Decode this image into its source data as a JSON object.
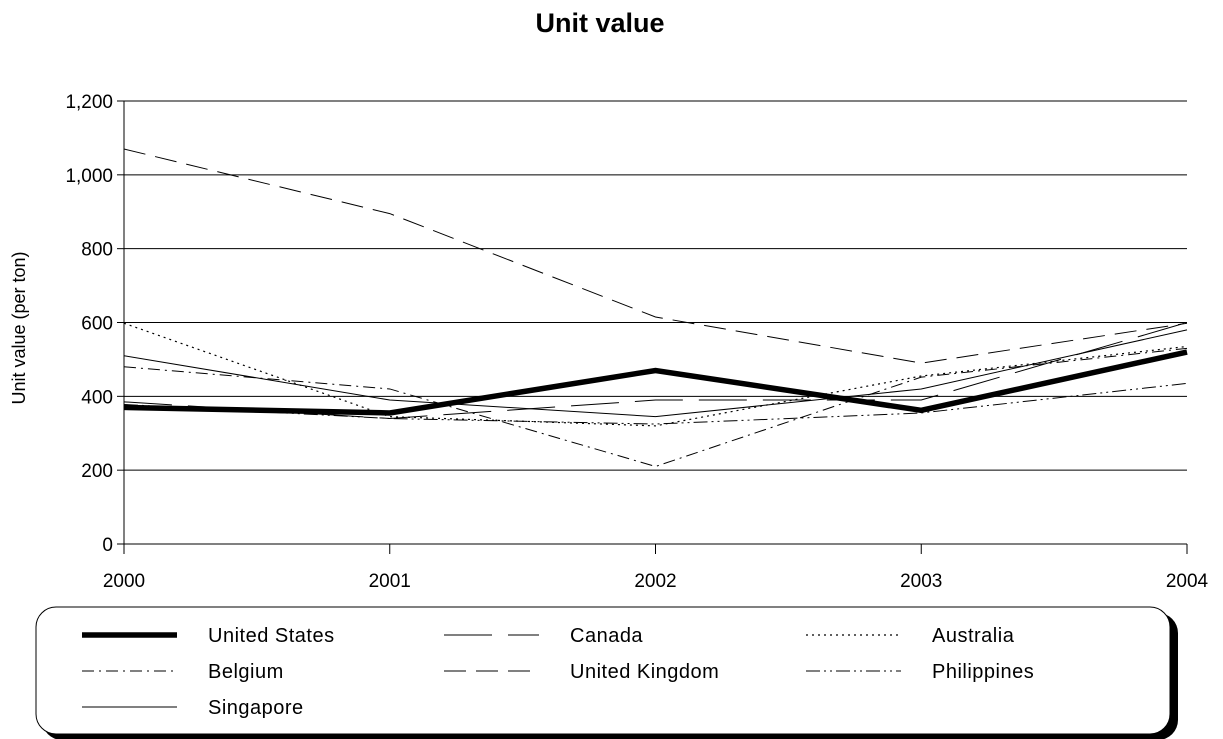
{
  "chart_data": {
    "type": "line",
    "title": "Unit value",
    "xlabel": "",
    "ylabel": "Unit value (per ton)",
    "x": [
      "2000",
      "2001",
      "2002",
      "2003",
      "2004"
    ],
    "ylim": [
      0,
      1200
    ],
    "yticks": [
      0,
      200,
      400,
      600,
      800,
      1000,
      1200
    ],
    "ytick_labels": [
      "0",
      "200",
      "400",
      "600",
      "800",
      "1,000",
      "1,200"
    ],
    "grid": "horizontal",
    "legend_position": "bottom",
    "series": [
      {
        "name": "United States",
        "values": [
          370,
          355,
          470,
          362,
          520
        ],
        "style": "thick"
      },
      {
        "name": "Canada",
        "values": [
          385,
          340,
          390,
          390,
          600
        ],
        "style": "long-dash"
      },
      {
        "name": "Australia",
        "values": [
          598,
          345,
          320,
          455,
          535
        ],
        "style": "dotted"
      },
      {
        "name": "Belgium",
        "values": [
          480,
          420,
          210,
          452,
          530
        ],
        "style": "dash-dot"
      },
      {
        "name": "United Kingdom",
        "values": [
          1070,
          895,
          615,
          490,
          598
        ],
        "style": "dash"
      },
      {
        "name": "Philippines",
        "values": [
          378,
          340,
          325,
          355,
          435
        ],
        "style": "dash-dot-dot"
      },
      {
        "name": "Singapore",
        "values": [
          510,
          390,
          345,
          420,
          580
        ],
        "style": "solid-thin"
      }
    ]
  }
}
